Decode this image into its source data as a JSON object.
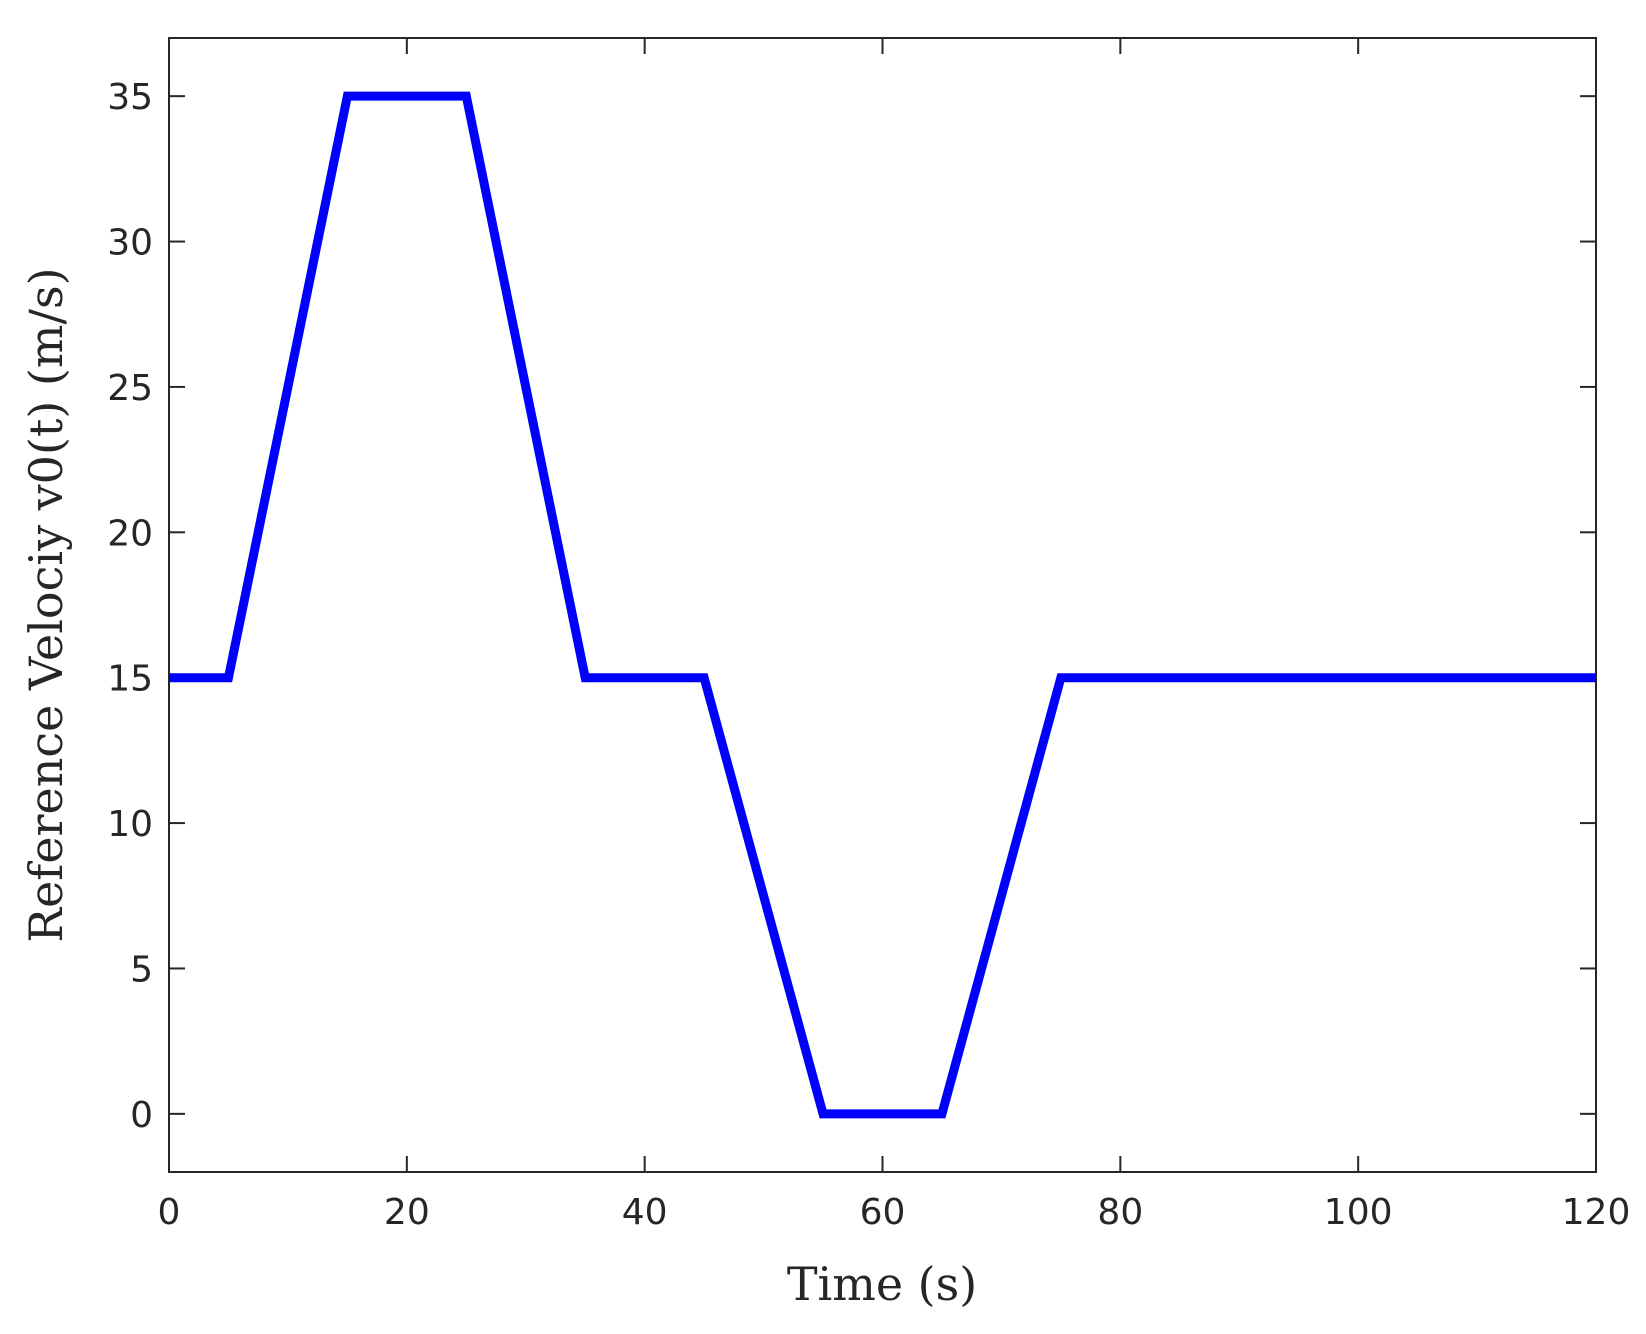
{
  "chart_data": {
    "type": "line",
    "x_label": "Time (s)",
    "y_label": "Reference Velociy v0(t) (m/s)",
    "x": [
      0,
      5,
      15,
      25,
      35,
      45,
      55,
      65,
      75,
      120
    ],
    "series": [
      {
        "color": "#0000ff",
        "values": [
          15,
          15,
          35,
          35,
          15,
          15,
          0,
          0,
          15,
          15
        ]
      }
    ],
    "xlim": [
      0,
      120
    ],
    "xticks": [
      0,
      20,
      40,
      60,
      80,
      100,
      120
    ],
    "ylim": [
      -2,
      37
    ],
    "yticks": [
      0,
      5,
      10,
      15,
      20,
      25,
      30,
      35
    ],
    "grid": false
  }
}
